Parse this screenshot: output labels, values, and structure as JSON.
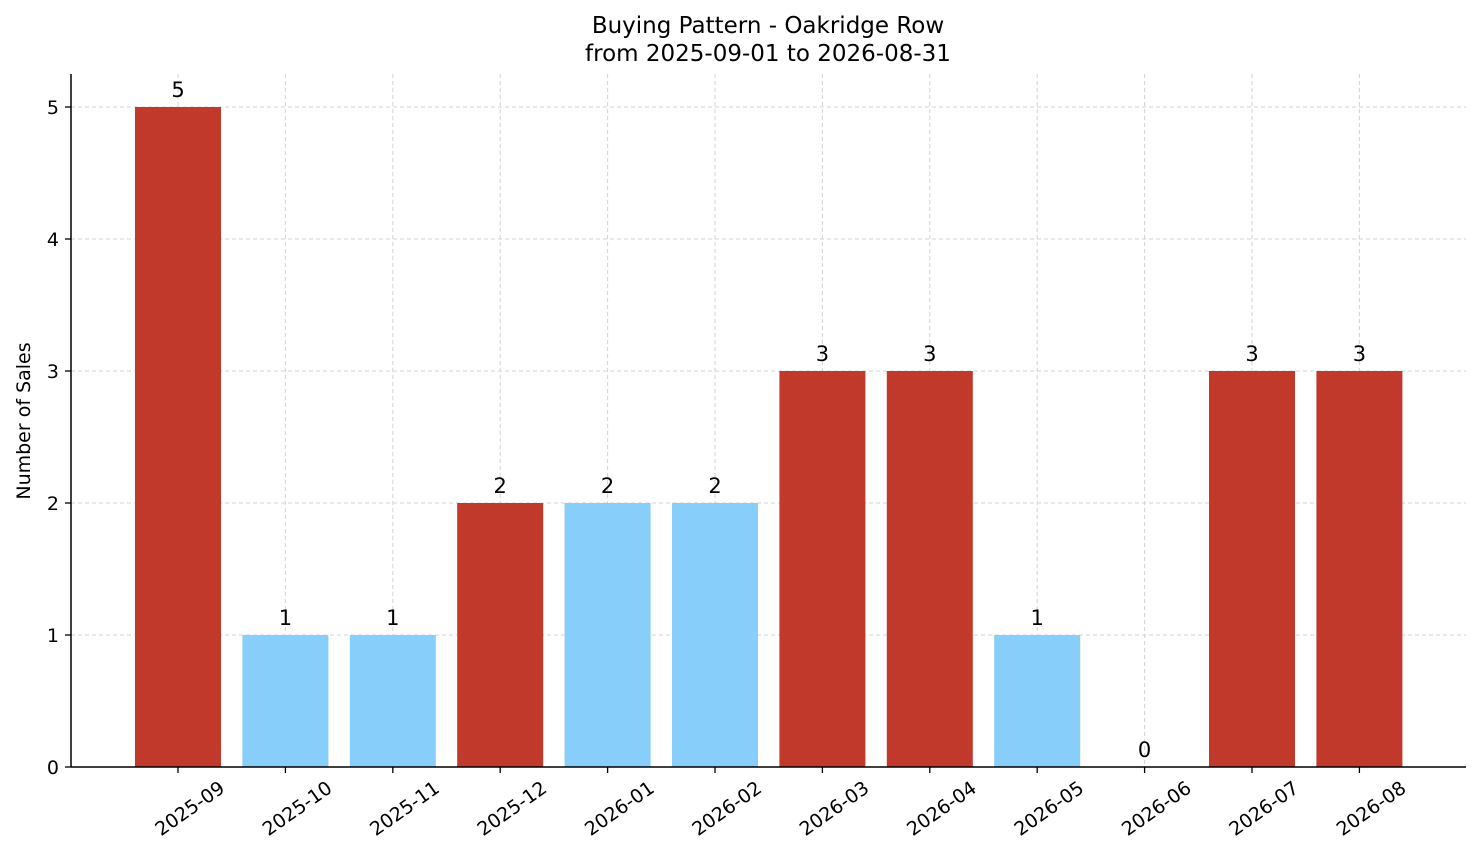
{
  "chart_data": {
    "type": "bar",
    "title": "Buying Pattern - Oakridge Row",
    "subtitle": "from 2025-09-01 to 2026-08-31",
    "xlabel": "",
    "ylabel": "Number of Sales",
    "categories": [
      "2025-09",
      "2025-10",
      "2025-11",
      "2025-12",
      "2026-01",
      "2026-02",
      "2026-03",
      "2026-04",
      "2026-05",
      "2026-06",
      "2026-07",
      "2026-08"
    ],
    "values": [
      5,
      1,
      1,
      2,
      2,
      2,
      3,
      3,
      1,
      0,
      3,
      3
    ],
    "bar_colors": [
      "#c0392b",
      "#87cefa",
      "#87cefa",
      "#c0392b",
      "#87cefa",
      "#87cefa",
      "#c0392b",
      "#c0392b",
      "#87cefa",
      "#87cefa",
      "#c0392b",
      "#c0392b"
    ],
    "ylim": [
      0,
      5.25
    ],
    "yticks": [
      0,
      1,
      2,
      3,
      4,
      5
    ],
    "grid": true,
    "data_labels": true
  }
}
